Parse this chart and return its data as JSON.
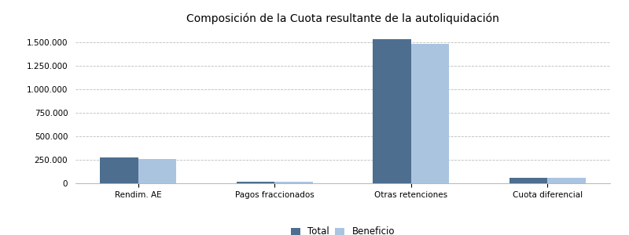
{
  "title": "Composición de la Cuota resultante de la autoliquidación",
  "categories": [
    "Rendim. AE",
    "Pagos fraccionados",
    "Otras retenciones",
    "Cuota diferencial"
  ],
  "total_values": [
    275000,
    20000,
    1530000,
    55000
  ],
  "beneficio_values": [
    260000,
    18000,
    1480000,
    60000
  ],
  "color_total": "#4d6e8e",
  "color_beneficio": "#aac4e0",
  "ylim": [
    0,
    1650000
  ],
  "yticks": [
    0,
    250000,
    500000,
    750000,
    1000000,
    1250000,
    1500000
  ],
  "legend_labels": [
    "Total",
    "Beneficio"
  ],
  "bar_width": 0.28,
  "background_color": "#ffffff",
  "plot_bg_color": "#ffffff",
  "grid_color": "#bbbbbb",
  "title_fontsize": 10,
  "tick_fontsize": 7.5
}
